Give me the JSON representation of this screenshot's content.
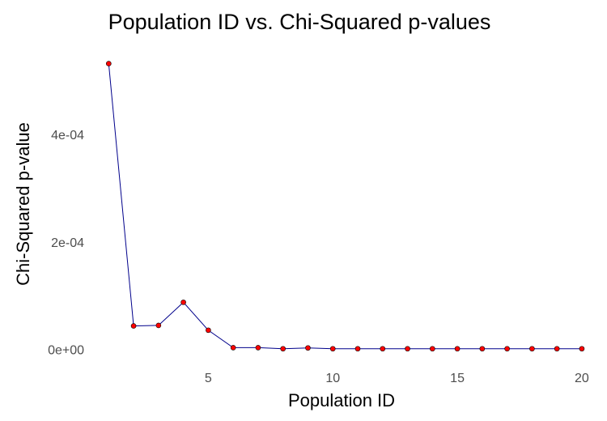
{
  "chart_data": {
    "type": "line",
    "title": "Population ID vs. Chi-Squared p-values",
    "xlabel": "Population ID",
    "ylabel": "Chi-Squared p-value",
    "x": [
      1,
      2,
      3,
      4,
      5,
      6,
      7,
      8,
      9,
      10,
      11,
      12,
      13,
      14,
      15,
      16,
      17,
      18,
      19,
      20
    ],
    "series": [
      {
        "values": [
          0.000532,
          4.35e-05,
          4.45e-05,
          8.75e-05,
          3.55e-05,
          3e-06,
          3e-06,
          1e-06,
          2.5e-06,
          1e-06,
          1e-06,
          1e-06,
          1e-06,
          1e-06,
          1e-06,
          1e-06,
          1e-06,
          1e-06,
          1e-06,
          1e-06
        ],
        "line_color": "#00008b",
        "point_color": "#ff0000"
      }
    ],
    "xlim": [
      0.6,
      20.1
    ],
    "ylim": [
      -2.5e-05,
      0.00056
    ],
    "x_ticks": [
      5,
      10,
      15,
      20
    ],
    "x_tick_labels": [
      "5",
      "10",
      "15",
      "20"
    ],
    "y_ticks": [
      0,
      0.0002,
      0.0004
    ],
    "y_tick_labels": [
      "0e+00",
      "2e-04",
      "4e-04"
    ],
    "grid": false,
    "legend": "none"
  }
}
